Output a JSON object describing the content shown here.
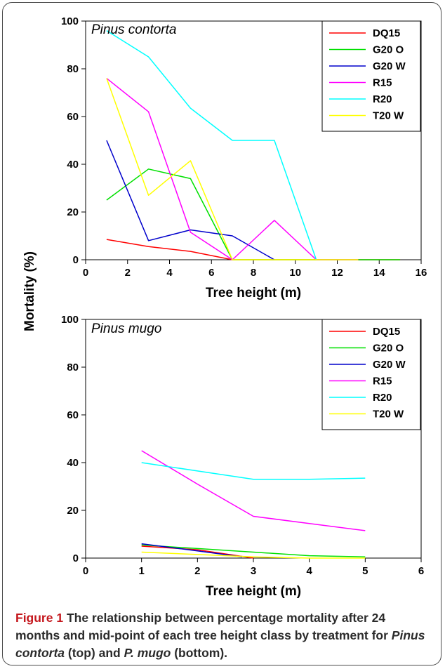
{
  "chart_data": [
    {
      "type": "line",
      "title": "Pinus contorta",
      "xlabel": "Tree height (m)",
      "ylabel": "Mortality (%)",
      "xlim": [
        0,
        16
      ],
      "ylim": [
        0,
        100
      ],
      "xticks": [
        0,
        2,
        4,
        6,
        8,
        10,
        12,
        14,
        16
      ],
      "yticks": [
        0,
        20,
        40,
        60,
        80,
        100
      ],
      "legend_position": "top-right",
      "grid": false,
      "series": [
        {
          "name": "DQ15",
          "color": "#ff0000",
          "x": [
            1,
            3,
            5,
            7,
            9,
            11,
            13,
            15
          ],
          "y": [
            8.5,
            5.5,
            3.5,
            0,
            0,
            0,
            0,
            0
          ]
        },
        {
          "name": "G20 O",
          "color": "#00e000",
          "x": [
            1,
            3,
            5,
            7,
            9,
            11,
            13,
            15
          ],
          "y": [
            25,
            38,
            34,
            0,
            0,
            0,
            0,
            0
          ]
        },
        {
          "name": "G20 W",
          "color": "#0000cc",
          "x": [
            1,
            3,
            5,
            7,
            9
          ],
          "y": [
            50,
            8,
            12.5,
            10,
            0
          ]
        },
        {
          "name": "R15",
          "color": "#ff00ff",
          "x": [
            1,
            3,
            5,
            7,
            9,
            11,
            13
          ],
          "y": [
            76,
            62,
            11.5,
            0,
            16.5,
            0,
            0
          ]
        },
        {
          "name": "R20",
          "color": "#00ffff",
          "x": [
            1,
            3,
            5,
            7,
            9,
            11
          ],
          "y": [
            96,
            85,
            63.5,
            50,
            50,
            0
          ]
        },
        {
          "name": "T20 W",
          "color": "#ffff00",
          "x": [
            1,
            3,
            5,
            7,
            9,
            11,
            13
          ],
          "y": [
            76,
            27,
            41.5,
            0,
            0,
            0,
            0
          ]
        }
      ]
    },
    {
      "type": "line",
      "title": "Pinus mugo",
      "xlabel": "Tree height (m)",
      "ylabel": "Mortality (%)",
      "xlim": [
        0,
        6
      ],
      "ylim": [
        0,
        100
      ],
      "xticks": [
        0,
        1,
        2,
        3,
        4,
        5,
        6
      ],
      "yticks": [
        0,
        20,
        40,
        60,
        80,
        100
      ],
      "legend_position": "top-right",
      "grid": false,
      "series": [
        {
          "name": "DQ15",
          "color": "#ff0000",
          "x": [
            1,
            2,
            3
          ],
          "y": [
            5,
            3.5,
            0
          ]
        },
        {
          "name": "G20 O",
          "color": "#00e000",
          "x": [
            1,
            2,
            3,
            4,
            5
          ],
          "y": [
            5.5,
            4,
            2.5,
            1,
            0.5
          ]
        },
        {
          "name": "G20 W",
          "color": "#0000cc",
          "x": [
            1,
            2,
            2.8
          ],
          "y": [
            6,
            3,
            0.5
          ]
        },
        {
          "name": "R15",
          "color": "#ff00ff",
          "x": [
            1,
            2,
            3,
            4,
            5
          ],
          "y": [
            45,
            31,
            17.5,
            14.5,
            11.5
          ]
        },
        {
          "name": "R20",
          "color": "#00ffff",
          "x": [
            1,
            2,
            3,
            4,
            5
          ],
          "y": [
            40,
            36.5,
            33,
            33,
            33.5
          ]
        },
        {
          "name": "T20 W",
          "color": "#ffff00",
          "x": [
            1,
            2,
            3,
            4,
            5
          ],
          "y": [
            2.5,
            1.5,
            0.5,
            0,
            0
          ]
        }
      ]
    }
  ],
  "caption": {
    "label": "Figure 1",
    "text_1": " The relationship between percentage mortality after 24 months and mid-point of each tree height class by treatment for ",
    "species_1": "Pinus contorta",
    "text_2": " (top) and ",
    "species_2": "P. mugo",
    "text_3": " (bottom)."
  }
}
